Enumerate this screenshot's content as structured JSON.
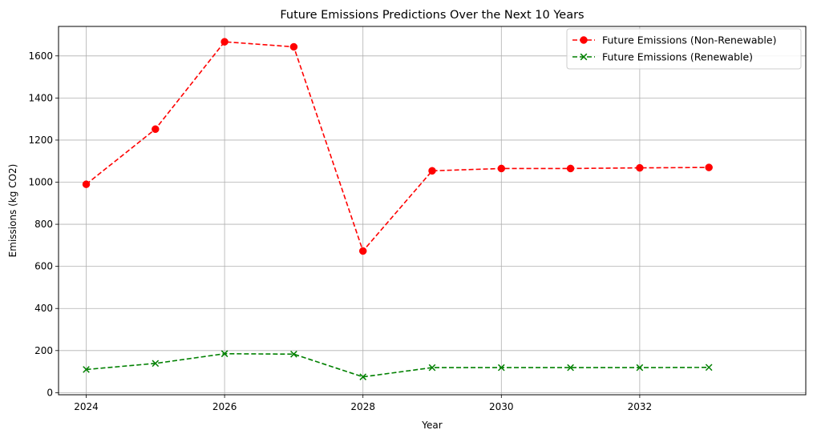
{
  "chart_data": {
    "type": "line",
    "title": "Future Emissions Predictions Over the Next 10 Years",
    "xlabel": "Year",
    "ylabel": "Emissions (kg CO2)",
    "x": [
      2024,
      2025,
      2026,
      2027,
      2028,
      2029,
      2030,
      2031,
      2032,
      2033
    ],
    "xlim": [
      2023.6,
      2034.4
    ],
    "ylim": [
      -10,
      1740
    ],
    "xticks": [
      2024,
      2026,
      2028,
      2030,
      2032
    ],
    "yticks": [
      0,
      200,
      400,
      600,
      800,
      1000,
      1200,
      1400,
      1600
    ],
    "grid": true,
    "legend_position": "top-right",
    "series": [
      {
        "name": "Future Emissions (Non-Renewable)",
        "color": "#ff0000",
        "marker": "circle",
        "linestyle": "dashed",
        "values": [
          990,
          1252,
          1667,
          1643,
          673,
          1054,
          1065,
          1065,
          1068,
          1070
        ]
      },
      {
        "name": "Future Emissions (Renewable)",
        "color": "#008000",
        "marker": "x",
        "linestyle": "dashed",
        "values": [
          110,
          139,
          185,
          183,
          75,
          119,
          119,
          119,
          119,
          120
        ]
      }
    ]
  }
}
